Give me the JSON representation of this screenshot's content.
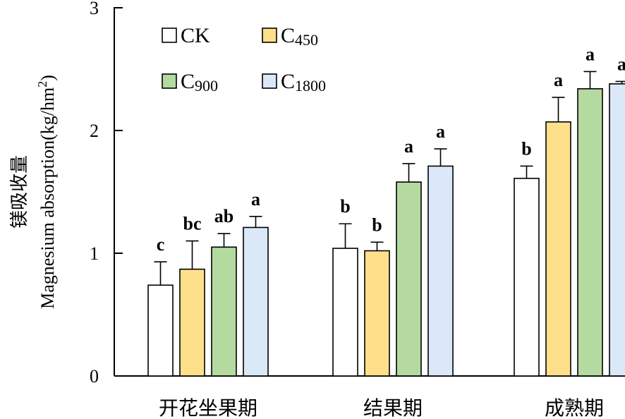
{
  "chart_data": {
    "type": "bar",
    "title": "",
    "ylabel_cn": "镁吸收量",
    "ylabel_en": "Magnesium absorption(kg/hm",
    "ylabel_sup": "2",
    "ylabel_close": ")",
    "ylim": [
      0,
      3
    ],
    "yticks": [
      "0",
      "1",
      "2",
      "3"
    ],
    "categories": [
      "开花坐果期",
      "结果期",
      "成熟期"
    ],
    "series": [
      {
        "name": "CK",
        "name_main": "C",
        "name_sub": "K",
        "color": "#ffffff",
        "values": [
          0.74,
          1.04,
          1.61
        ],
        "errors": [
          0.19,
          0.2,
          0.1
        ],
        "sig": [
          "c",
          "b",
          "b"
        ]
      },
      {
        "name": "C450",
        "name_main": "C",
        "name_sub": "450",
        "color": "#ffe08a",
        "values": [
          0.87,
          1.02,
          2.07
        ],
        "errors": [
          0.23,
          0.07,
          0.2
        ],
        "sig": [
          "bc",
          "b",
          "a"
        ]
      },
      {
        "name": "C900",
        "name_main": "C",
        "name_sub": "900",
        "color": "#b5daa0",
        "values": [
          1.05,
          1.58,
          2.34
        ],
        "errors": [
          0.11,
          0.15,
          0.14
        ],
        "sig": [
          "ab",
          "a",
          "a"
        ]
      },
      {
        "name": "C1800",
        "name_main": "C",
        "name_sub": "1800",
        "color": "#dbe8f7",
        "values": [
          1.21,
          1.71,
          2.38
        ],
        "errors": [
          0.09,
          0.14,
          0.02
        ],
        "sig": [
          "a",
          "a",
          "a"
        ]
      }
    ],
    "legend_position": "top-left",
    "grid": false
  }
}
